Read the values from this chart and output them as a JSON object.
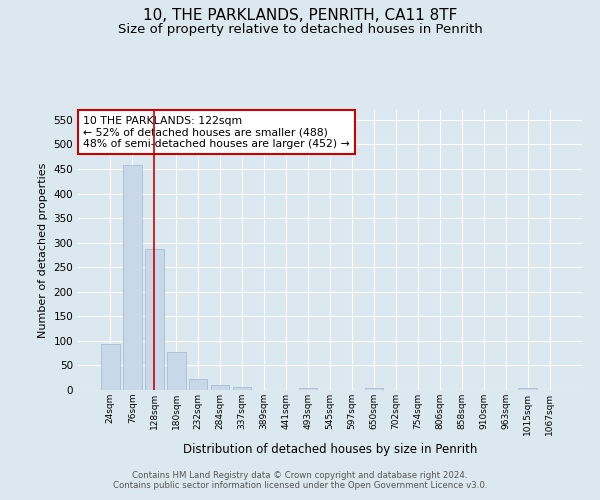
{
  "title1": "10, THE PARKLANDS, PENRITH, CA11 8TF",
  "title2": "Size of property relative to detached houses in Penrith",
  "xlabel": "Distribution of detached houses by size in Penrith",
  "ylabel": "Number of detached properties",
  "categories": [
    "24sqm",
    "76sqm",
    "128sqm",
    "180sqm",
    "232sqm",
    "284sqm",
    "337sqm",
    "389sqm",
    "441sqm",
    "493sqm",
    "545sqm",
    "597sqm",
    "650sqm",
    "702sqm",
    "754sqm",
    "806sqm",
    "858sqm",
    "910sqm",
    "963sqm",
    "1015sqm",
    "1067sqm"
  ],
  "values": [
    93,
    458,
    288,
    77,
    22,
    10,
    6,
    0,
    0,
    5,
    0,
    0,
    5,
    0,
    0,
    0,
    0,
    0,
    0,
    5,
    0
  ],
  "bar_color": "#c8d8e8",
  "bar_edge_color": "#a0b8d0",
  "vline_x": 2,
  "vline_color": "#cc0000",
  "annotation_text": "10 THE PARKLANDS: 122sqm\n← 52% of detached houses are smaller (488)\n48% of semi-detached houses are larger (452) →",
  "annotation_box_color": "#ffffff",
  "annotation_box_edge_color": "#cc0000",
  "ylim": [
    0,
    570
  ],
  "yticks": [
    0,
    50,
    100,
    150,
    200,
    250,
    300,
    350,
    400,
    450,
    500,
    550
  ],
  "footer": "Contains HM Land Registry data © Crown copyright and database right 2024.\nContains public sector information licensed under the Open Government Licence v3.0.",
  "bg_color": "#dce8f0",
  "grid_color": "#ffffff",
  "title1_fontsize": 11,
  "title2_fontsize": 9.5
}
